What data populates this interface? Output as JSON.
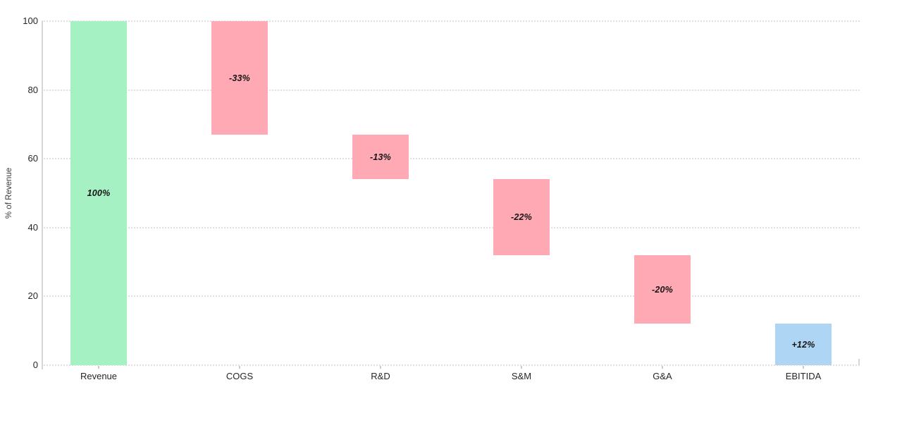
{
  "chart_data": {
    "type": "bar",
    "subtype": "waterfall",
    "title": "",
    "ylabel": "% of Revenue",
    "ylim": [
      0,
      100
    ],
    "yticks": [
      0,
      20,
      40,
      60,
      80,
      100
    ],
    "grid": "horizontal-dotted",
    "legend": "none",
    "colors": {
      "total": "#a5f1c4",
      "decrease": "#ffa9b4",
      "final": "#aed6f4",
      "grid": "#e0e0e0",
      "axis": "#d6d6d6",
      "tick_text": "#262626",
      "bar_label_text": "#161616"
    },
    "categories": [
      "Revenue",
      "COGS",
      "R&D",
      "S&M",
      "G&A",
      "EBITIDA"
    ],
    "bars": [
      {
        "category": "Revenue",
        "start": 0,
        "end": 100,
        "value": 100,
        "label": "100%",
        "role": "total"
      },
      {
        "category": "COGS",
        "start": 100,
        "end": 67,
        "value": -33,
        "label": "-33%",
        "role": "decrease"
      },
      {
        "category": "R&D",
        "start": 67,
        "end": 54,
        "value": -13,
        "label": "-13%",
        "role": "decrease"
      },
      {
        "category": "S&M",
        "start": 54,
        "end": 32,
        "value": -22,
        "label": "-22%",
        "role": "decrease"
      },
      {
        "category": "G&A",
        "start": 32,
        "end": 12,
        "value": -20,
        "label": "-20%",
        "role": "decrease"
      },
      {
        "category": "EBITIDA",
        "start": 0,
        "end": 12,
        "value": 12,
        "label": "+12%",
        "role": "final"
      }
    ]
  }
}
